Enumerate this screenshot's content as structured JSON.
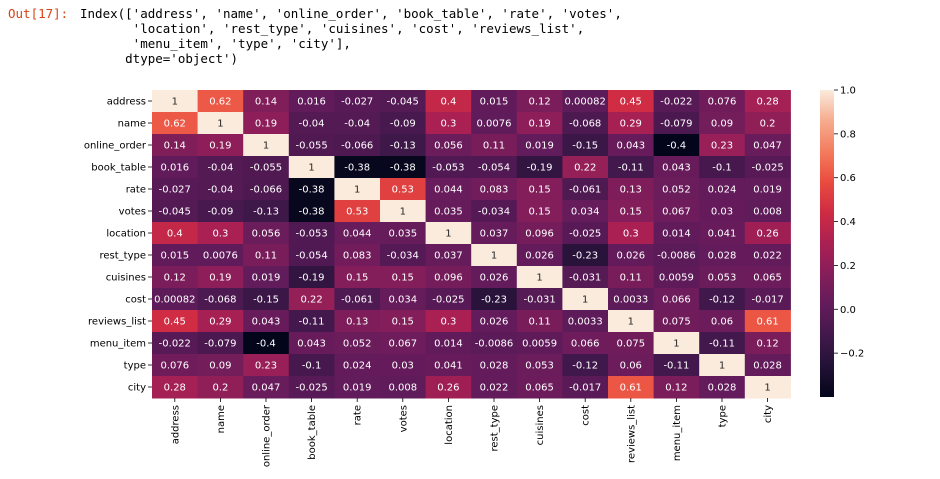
{
  "cell": {
    "prompt": "Out[17]:",
    "output_lines": [
      "Index(['address', 'name', 'online_order', 'book_table', 'rate', 'votes',",
      "       'location', 'rest_type', 'cuisines', 'cost', 'reviews_list',",
      "       'menu_item', 'type', 'city'],",
      "      dtype='object')"
    ]
  },
  "chart_data": {
    "type": "heatmap",
    "title": "",
    "xlabel": "",
    "ylabel": "",
    "rows": [
      "address",
      "name",
      "online_order",
      "book_table",
      "rate",
      "votes",
      "location",
      "rest_type",
      "cuisines",
      "cost",
      "reviews_list",
      "menu_item",
      "type",
      "city"
    ],
    "cols": [
      "address",
      "name",
      "online_order",
      "book_table",
      "rate",
      "votes",
      "location",
      "rest_type",
      "cuisines",
      "cost",
      "reviews_list",
      "menu_item",
      "type",
      "city"
    ],
    "values": [
      [
        "1",
        "0.62",
        "0.14",
        "0.016",
        "-0.027",
        "-0.045",
        "0.4",
        "0.015",
        "0.12",
        "0.00082",
        "0.45",
        "-0.022",
        "0.076",
        "0.28"
      ],
      [
        "0.62",
        "1",
        "0.19",
        "-0.04",
        "-0.04",
        "-0.09",
        "0.3",
        "0.0076",
        "0.19",
        "-0.068",
        "0.29",
        "-0.079",
        "0.09",
        "0.2"
      ],
      [
        "0.14",
        "0.19",
        "1",
        "-0.055",
        "-0.066",
        "-0.13",
        "0.056",
        "0.11",
        "0.019",
        "-0.15",
        "0.043",
        "-0.4",
        "0.23",
        "0.047"
      ],
      [
        "0.016",
        "-0.04",
        "-0.055",
        "1",
        "-0.38",
        "-0.38",
        "-0.053",
        "-0.054",
        "-0.19",
        "0.22",
        "-0.11",
        "0.043",
        "-0.1",
        "-0.025"
      ],
      [
        "-0.027",
        "-0.04",
        "-0.066",
        "-0.38",
        "1",
        "0.53",
        "0.044",
        "0.083",
        "0.15",
        "-0.061",
        "0.13",
        "0.052",
        "0.024",
        "0.019"
      ],
      [
        "-0.045",
        "-0.09",
        "-0.13",
        "-0.38",
        "0.53",
        "1",
        "0.035",
        "-0.034",
        "0.15",
        "0.034",
        "0.15",
        "0.067",
        "0.03",
        "0.008"
      ],
      [
        "0.4",
        "0.3",
        "0.056",
        "-0.053",
        "0.044",
        "0.035",
        "1",
        "0.037",
        "0.096",
        "-0.025",
        "0.3",
        "0.014",
        "0.041",
        "0.26"
      ],
      [
        "0.015",
        "0.0076",
        "0.11",
        "-0.054",
        "0.083",
        "-0.034",
        "0.037",
        "1",
        "0.026",
        "-0.23",
        "0.026",
        "-0.0086",
        "0.028",
        "0.022"
      ],
      [
        "0.12",
        "0.19",
        "0.019",
        "-0.19",
        "0.15",
        "0.15",
        "0.096",
        "0.026",
        "1",
        "-0.031",
        "0.11",
        "0.0059",
        "0.053",
        "0.065"
      ],
      [
        "0.00082",
        "-0.068",
        "-0.15",
        "0.22",
        "-0.061",
        "0.034",
        "-0.025",
        "-0.23",
        "-0.031",
        "1",
        "0.0033",
        "0.066",
        "-0.12",
        "-0.017"
      ],
      [
        "0.45",
        "0.29",
        "0.043",
        "-0.11",
        "0.13",
        "0.15",
        "0.3",
        "0.026",
        "0.11",
        "0.0033",
        "1",
        "0.075",
        "0.06",
        "0.61"
      ],
      [
        "-0.022",
        "-0.079",
        "-0.4",
        "0.043",
        "0.052",
        "0.067",
        "0.014",
        "-0.0086",
        "0.0059",
        "0.066",
        "0.075",
        "1",
        "-0.11",
        "0.12"
      ],
      [
        "0.076",
        "0.09",
        "0.23",
        "-0.1",
        "0.024",
        "0.03",
        "0.041",
        "0.028",
        "0.053",
        "-0.12",
        "0.06",
        "-0.11",
        "1",
        "0.028"
      ],
      [
        "0.28",
        "0.2",
        "0.047",
        "-0.025",
        "0.019",
        "0.008",
        "0.26",
        "0.022",
        "0.065",
        "-0.017",
        "0.61",
        "0.12",
        "0.028",
        "1"
      ]
    ],
    "colormap": "rocket",
    "vmin": -0.4,
    "vmax": 1.0,
    "colorbar_ticks": [
      "1.0",
      "0.8",
      "0.6",
      "0.4",
      "0.2",
      "0.0",
      "−0.2"
    ],
    "colorbar_tick_values": [
      1.0,
      0.8,
      0.6,
      0.4,
      0.2,
      0.0,
      -0.2
    ]
  }
}
